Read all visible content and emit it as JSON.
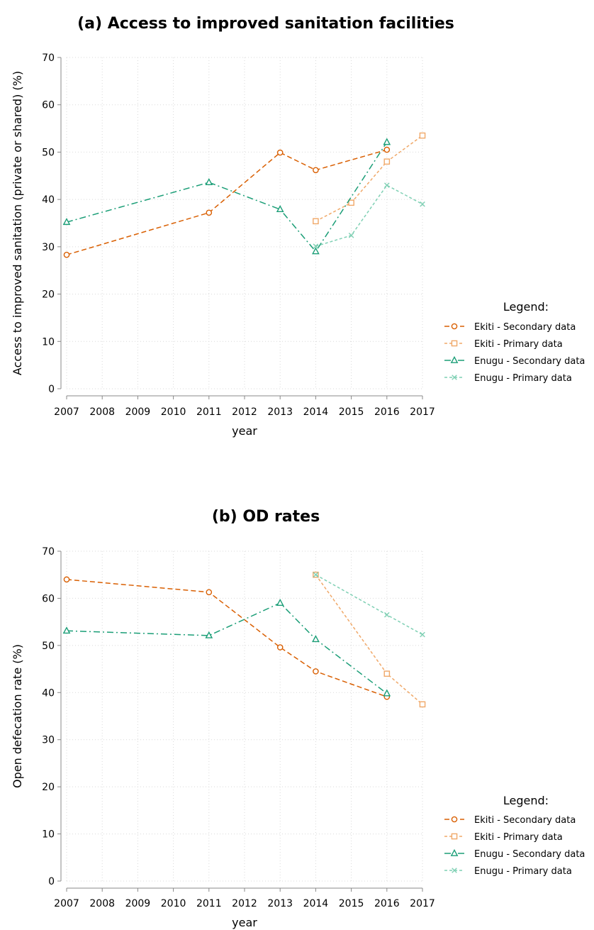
{
  "colors": {
    "ekiti_secondary": "#d95f02",
    "ekiti_primary": "#f0a868",
    "enugu_secondary": "#1b9e77",
    "enugu_primary": "#7fd0b4",
    "axis": "#888888",
    "grid": "#d9d9d9"
  },
  "chart_data": [
    {
      "type": "line",
      "title": "(a) Access to improved sanitation facilities",
      "xlabel": "year",
      "ylabel": "Access to improved sanitation (private or shared) (%)",
      "xlim": [
        2007,
        2017
      ],
      "ylim": [
        0,
        70
      ],
      "xticks": [
        "2007",
        "2008",
        "2009",
        "2010",
        "2011",
        "2012",
        "2013",
        "2014",
        "2015",
        "2016",
        "2017"
      ],
      "yticks": [
        "0",
        "10",
        "20",
        "30",
        "40",
        "50",
        "60",
        "70"
      ],
      "grid": true,
      "legend": {
        "title": "Legend:",
        "placement": "right"
      },
      "series": [
        {
          "name": "Ekiti - Secondary data",
          "key": "ekiti_secondary",
          "marker": "circle",
          "dash": "long",
          "x": [
            2007,
            2011,
            2013,
            2014,
            2016
          ],
          "y": [
            28.3,
            37.2,
            49.9,
            46.2,
            50.5
          ]
        },
        {
          "name": "Ekiti - Primary data",
          "key": "ekiti_primary",
          "marker": "square",
          "dash": "short",
          "x": [
            2014,
            2015,
            2016,
            2017
          ],
          "y": [
            35.4,
            39.3,
            48.0,
            53.5
          ]
        },
        {
          "name": "Enugu - Secondary data",
          "key": "enugu_secondary",
          "marker": "triangle",
          "dash": "dashdot",
          "x": [
            2007,
            2011,
            2013,
            2014,
            2016
          ],
          "y": [
            35.2,
            43.6,
            37.9,
            29.0,
            52.1
          ]
        },
        {
          "name": "Enugu - Primary data",
          "key": "enugu_primary",
          "marker": "x",
          "dash": "short",
          "x": [
            2014,
            2015,
            2016,
            2017
          ],
          "y": [
            30.1,
            32.4,
            43.0,
            39.0
          ]
        }
      ]
    },
    {
      "type": "line",
      "title": "(b) OD rates",
      "xlabel": "year",
      "ylabel": "Open defecation rate (%)",
      "xlim": [
        2007,
        2017
      ],
      "ylim": [
        0,
        70
      ],
      "xticks": [
        "2007",
        "2008",
        "2009",
        "2010",
        "2011",
        "2012",
        "2013",
        "2014",
        "2015",
        "2016",
        "2017"
      ],
      "yticks": [
        "0",
        "10",
        "20",
        "30",
        "40",
        "50",
        "60",
        "70"
      ],
      "grid": true,
      "legend": {
        "title": "Legend:",
        "placement": "right"
      },
      "series": [
        {
          "name": "Ekiti - Secondary data",
          "key": "ekiti_secondary",
          "marker": "circle",
          "dash": "long",
          "x": [
            2007,
            2011,
            2013,
            2014,
            2016
          ],
          "y": [
            64.0,
            61.3,
            49.6,
            44.5,
            39.1
          ]
        },
        {
          "name": "Ekiti - Primary data",
          "key": "ekiti_primary",
          "marker": "square",
          "dash": "short",
          "x": [
            2014,
            2016,
            2017
          ],
          "y": [
            65.0,
            44.0,
            37.5
          ]
        },
        {
          "name": "Enugu - Secondary data",
          "key": "enugu_secondary",
          "marker": "triangle",
          "dash": "dashdot",
          "x": [
            2007,
            2011,
            2013,
            2014,
            2016
          ],
          "y": [
            53.1,
            52.1,
            59.0,
            51.3,
            39.8
          ]
        },
        {
          "name": "Enugu - Primary data",
          "key": "enugu_primary",
          "marker": "x",
          "dash": "short",
          "x": [
            2014,
            2016,
            2017
          ],
          "y": [
            65.0,
            56.5,
            52.3
          ]
        }
      ]
    }
  ]
}
